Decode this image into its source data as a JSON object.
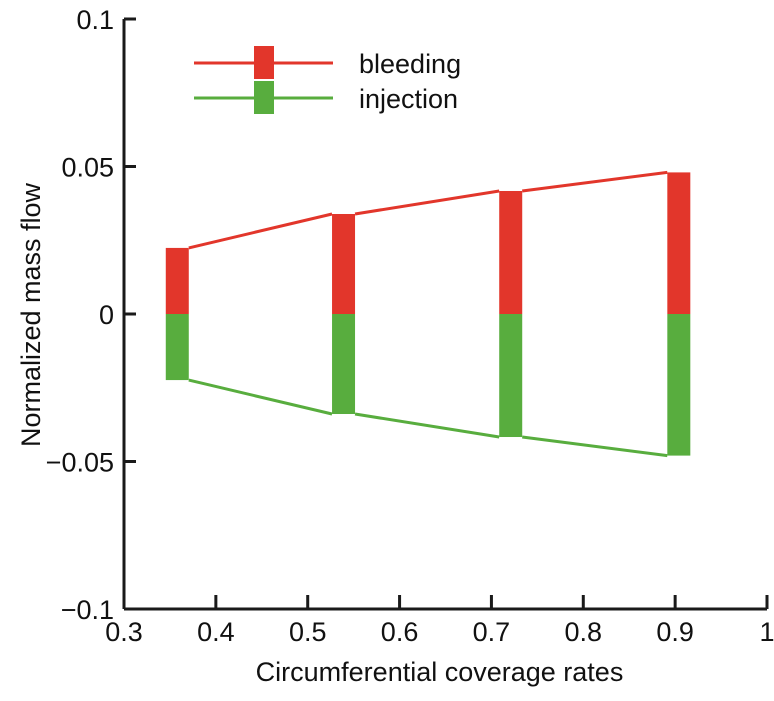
{
  "chart_data": {
    "type": "bar",
    "title": "",
    "xlabel": "Circumferential coverage rates",
    "ylabel": "Normalized mass flow",
    "xlim": [
      0.3,
      1.0
    ],
    "ylim": [
      -0.1,
      0.1
    ],
    "xticks": [
      0.3,
      0.4,
      0.5,
      0.6,
      0.7,
      0.8,
      0.9,
      1.0
    ],
    "xtick_labels": [
      "0.3",
      "0.4",
      "0.5",
      "0.6",
      "0.7",
      "0.8",
      "0.9",
      "1"
    ],
    "yticks": [
      0.1,
      0.05,
      0,
      -0.05,
      -0.1
    ],
    "ytick_labels": [
      "0.1",
      "0.05",
      "0",
      "−0.05",
      "−0.1"
    ],
    "grid": false,
    "legend_position": "top-left",
    "x": [
      0.358,
      0.539,
      0.721,
      0.904
    ],
    "series": [
      {
        "name": "bleeding",
        "color": "#e2362b",
        "values": [
          0.0224,
          0.0339,
          0.0417,
          0.048
        ]
      },
      {
        "name": "injection",
        "color": "#58ad3e",
        "values": [
          -0.0224,
          -0.0339,
          -0.0417,
          -0.048
        ]
      }
    ]
  }
}
